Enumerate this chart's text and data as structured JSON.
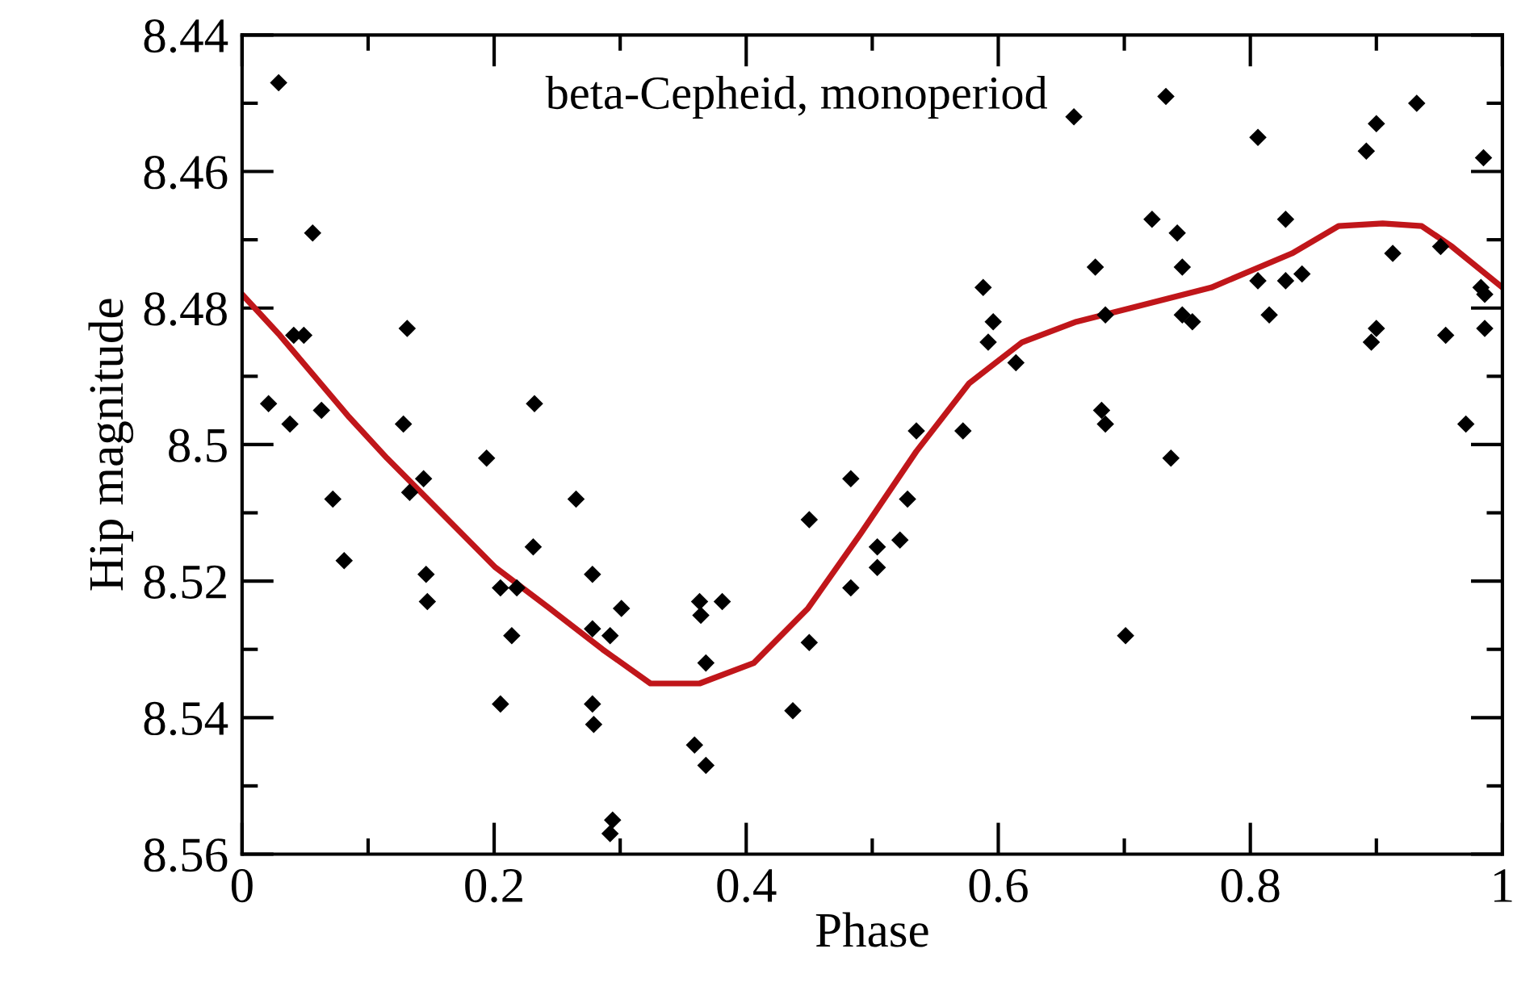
{
  "chart_data": {
    "type": "scatter",
    "xlabel": "Phase",
    "ylabel": "Hip magnitude",
    "annotations": [
      "beta-Cepheid, monoperiod"
    ],
    "xlim": [
      0,
      1
    ],
    "ylim": [
      8.56,
      8.44
    ],
    "xticks": [
      0,
      {
        "value": 0.1,
        "label": null
      },
      0.2,
      {
        "value": 0.3,
        "label": null
      },
      0.4,
      {
        "value": 0.5,
        "label": null
      },
      0.6,
      {
        "value": 0.7,
        "label": null
      },
      0.8,
      {
        "value": 0.9,
        "label": null
      },
      1
    ],
    "yticks": [
      8.44,
      {
        "value": 8.45,
        "label": null
      },
      8.46,
      {
        "value": 8.47,
        "label": null
      },
      8.48,
      {
        "value": 8.49,
        "label": null
      },
      8.5,
      {
        "value": 8.51,
        "label": null
      },
      8.52,
      {
        "value": 8.53,
        "label": null
      },
      8.54,
      {
        "value": 8.55,
        "label": null
      },
      8.56
    ],
    "grid": false,
    "legend": false,
    "series": [
      {
        "marker": "diamond",
        "color": "#000000",
        "x": [
          0.029,
          0.021,
          0.038,
          0.041,
          0.049,
          0.056,
          0.063,
          0.072,
          0.081,
          0.128,
          0.131,
          0.133,
          0.144,
          0.146,
          0.147,
          0.194,
          0.205,
          0.205,
          0.214,
          0.218,
          0.231,
          0.232,
          0.265,
          0.278,
          0.278,
          0.278,
          0.279,
          0.292,
          0.294,
          0.292,
          0.301,
          0.363,
          0.381,
          0.364,
          0.368,
          0.359,
          0.368,
          0.45,
          0.45,
          0.437,
          0.483,
          0.483,
          0.504,
          0.504,
          0.522,
          0.528,
          0.535,
          0.572,
          0.588,
          0.596,
          0.592,
          0.614,
          0.66,
          0.733,
          0.677,
          0.685,
          0.682,
          0.685,
          0.701,
          0.722,
          0.737,
          0.742,
          0.746,
          0.746,
          0.754,
          0.806,
          0.806,
          0.815,
          0.828,
          0.828,
          0.841,
          0.892,
          0.9,
          0.932,
          0.913,
          0.896,
          0.9,
          0.951,
          0.955,
          0.971,
          0.985,
          0.983,
          0.986,
          0.986
        ],
        "values": [
          8.447,
          8.494,
          8.497,
          8.484,
          8.484,
          8.469,
          8.495,
          8.508,
          8.517,
          8.497,
          8.483,
          8.507,
          8.505,
          8.519,
          8.523,
          8.502,
          8.521,
          8.538,
          8.528,
          8.521,
          8.515,
          8.494,
          8.508,
          8.519,
          8.527,
          8.538,
          8.541,
          8.528,
          8.555,
          8.557,
          8.524,
          8.523,
          8.523,
          8.525,
          8.532,
          8.544,
          8.547,
          8.511,
          8.529,
          8.539,
          8.505,
          8.521,
          8.515,
          8.518,
          8.514,
          8.508,
          8.498,
          8.498,
          8.477,
          8.482,
          8.485,
          8.488,
          8.452,
          8.449,
          8.474,
          8.481,
          8.495,
          8.497,
          8.528,
          8.467,
          8.502,
          8.469,
          8.474,
          8.481,
          8.482,
          8.455,
          8.476,
          8.481,
          8.467,
          8.476,
          8.475,
          8.457,
          8.453,
          8.45,
          8.472,
          8.485,
          8.483,
          8.471,
          8.484,
          8.497,
          8.458,
          8.477,
          8.478,
          8.483
        ]
      },
      {
        "type": "line",
        "line_style": "solid",
        "color": "#c0161a",
        "x": [
          0,
          0.03,
          0.085,
          0.115,
          0.158,
          0.201,
          0.244,
          0.286,
          0.324,
          0.363,
          0.406,
          0.449,
          0.491,
          0.535,
          0.577,
          0.619,
          0.662,
          0.705,
          0.769,
          0.833,
          0.87,
          0.905,
          0.936,
          0.96,
          1.0
        ],
        "values": [
          8.478,
          8.484,
          8.496,
          8.502,
          8.51,
          8.518,
          8.524,
          8.53,
          8.535,
          8.535,
          8.532,
          8.524,
          8.513,
          8.501,
          8.491,
          8.485,
          8.482,
          8.48,
          8.477,
          8.472,
          8.468,
          8.4676,
          8.468,
          8.471,
          8.477
        ]
      }
    ]
  }
}
